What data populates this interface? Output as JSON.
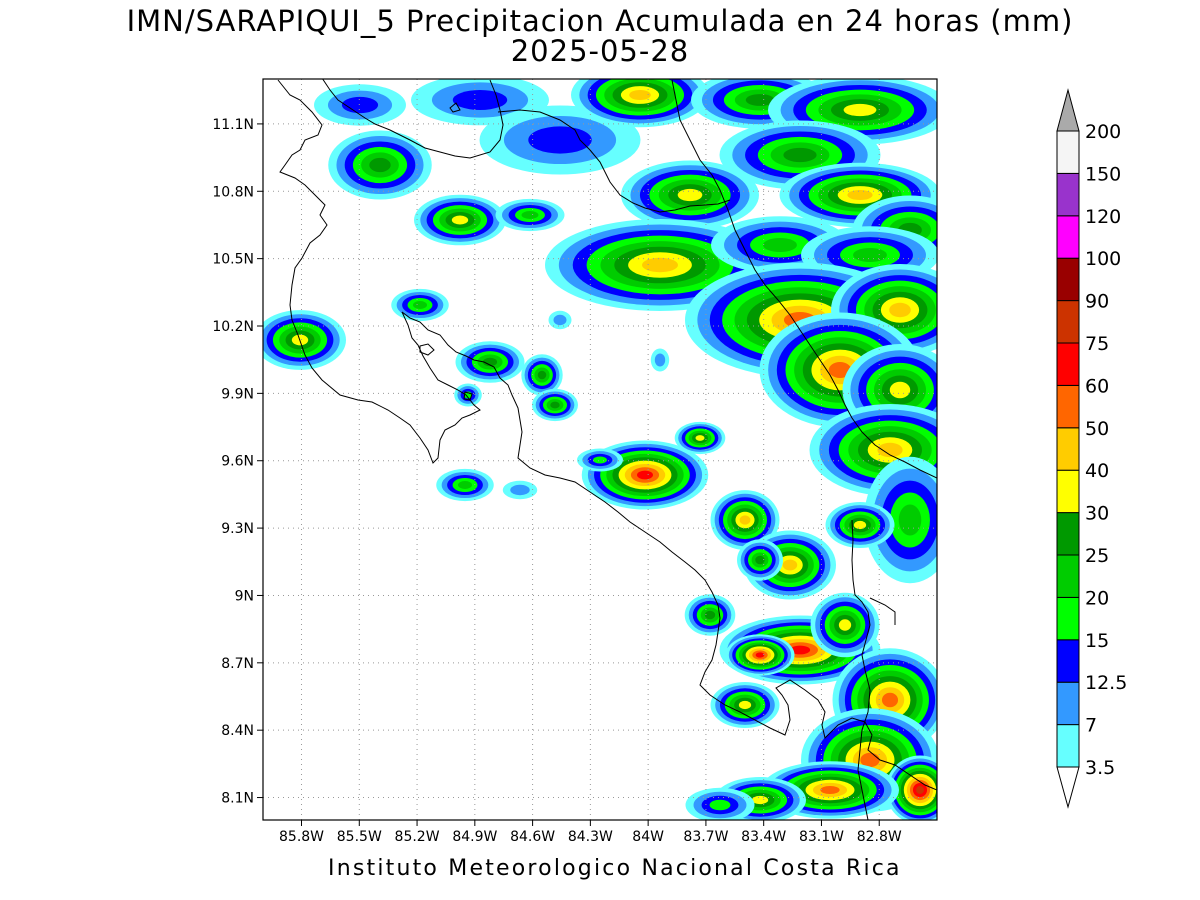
{
  "title_line1": "IMN/SARAPIQUI_5 Precipitacion Acumulada en 24 horas (mm)",
  "title_line2": "2025-05-28",
  "footer": "Instituto Meteorologico Nacional Costa Rica",
  "map": {
    "lon_range": [
      -86.0,
      -82.5
    ],
    "lat_range": [
      8.0,
      11.3
    ],
    "lat_ticks": [
      {
        "value": 11.1,
        "label": "11.1N"
      },
      {
        "value": 10.8,
        "label": "10.8N"
      },
      {
        "value": 10.5,
        "label": "10.5N"
      },
      {
        "value": 10.2,
        "label": "10.2N"
      },
      {
        "value": 9.9,
        "label": "9.9N"
      },
      {
        "value": 9.6,
        "label": "9.6N"
      },
      {
        "value": 9.3,
        "label": "9.3N"
      },
      {
        "value": 9.0,
        "label": "9N"
      },
      {
        "value": 8.7,
        "label": "8.7N"
      },
      {
        "value": 8.4,
        "label": "8.4N"
      },
      {
        "value": 8.1,
        "label": "8.1N"
      }
    ],
    "lon_ticks": [
      {
        "value": -85.8,
        "label": "85.8W"
      },
      {
        "value": -85.5,
        "label": "85.5W"
      },
      {
        "value": -85.2,
        "label": "85.2W"
      },
      {
        "value": -84.9,
        "label": "84.9W"
      },
      {
        "value": -84.6,
        "label": "84.6W"
      },
      {
        "value": -84.3,
        "label": "84.3W"
      },
      {
        "value": -84.0,
        "label": "84W"
      },
      {
        "value": -83.7,
        "label": "83.7W"
      },
      {
        "value": -83.4,
        "label": "83.4W"
      },
      {
        "value": -83.1,
        "label": "83.1W"
      },
      {
        "value": -82.8,
        "label": "82.8W"
      }
    ],
    "grid": "dotted"
  },
  "colorbar": {
    "levels": [
      {
        "label": "3.5",
        "color": "#66ffff"
      },
      {
        "label": "7",
        "color": "#3399ff"
      },
      {
        "label": "12.5",
        "color": "#0000ff"
      },
      {
        "label": "15",
        "color": "#00ff00"
      },
      {
        "label": "20",
        "color": "#00cc00"
      },
      {
        "label": "25",
        "color": "#009900"
      },
      {
        "label": "30",
        "color": "#ffff00"
      },
      {
        "label": "40",
        "color": "#ffcc00"
      },
      {
        "label": "50",
        "color": "#ff6600"
      },
      {
        "label": "60",
        "color": "#ff0000"
      },
      {
        "label": "75",
        "color": "#cc3300"
      },
      {
        "label": "90",
        "color": "#990000"
      },
      {
        "label": "100",
        "color": "#ff00ff"
      },
      {
        "label": "120",
        "color": "#9933cc"
      },
      {
        "label": "150",
        "color": "#f5f5f5"
      },
      {
        "label": "200",
        "color": "#aaaaaa"
      }
    ]
  }
}
